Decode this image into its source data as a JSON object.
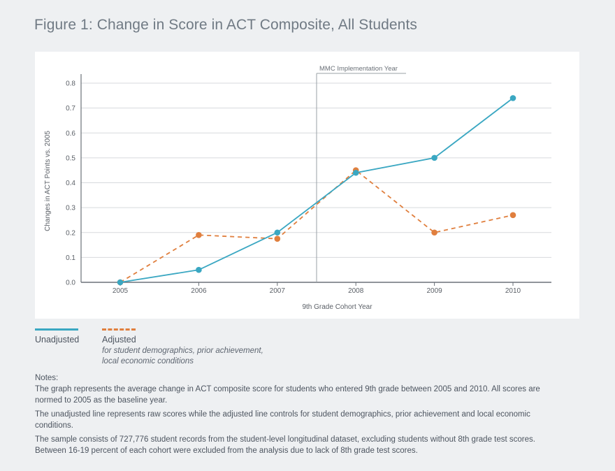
{
  "title": "Figure 1: Change in Score in ACT Composite, All Students",
  "colors": {
    "unadjusted": "#3aa7c2",
    "adjusted": "#e07f3e",
    "grid": "#d7dadd",
    "axis": "#6b7178"
  },
  "chart_data": {
    "type": "line",
    "title": "",
    "xlabel": "9th Grade Cohort Year",
    "ylabel": "Changes in ACT Points vs. 2005",
    "categories": [
      "2005",
      "2006",
      "2007",
      "2008",
      "2009",
      "2010"
    ],
    "ylim": [
      0,
      0.8
    ],
    "yticks": [
      "0.0",
      "0.1",
      "0.2",
      "0.3",
      "0.4",
      "0.5",
      "0.6",
      "0.7",
      "0.8"
    ],
    "grid": true,
    "series": [
      {
        "name": "Unadjusted",
        "style": "solid",
        "values": [
          0.0,
          0.05,
          0.2,
          0.44,
          0.5,
          0.74
        ]
      },
      {
        "name": "Adjusted",
        "style": "dashed",
        "values": [
          0.0,
          0.19,
          0.175,
          0.45,
          0.2,
          0.27
        ]
      }
    ],
    "annotation": {
      "label": "MMC Implementation Year",
      "between": [
        "2007",
        "2008"
      ]
    }
  },
  "legend": {
    "unadjusted_label": "Unadjusted",
    "adjusted_label": "Adjusted",
    "adjusted_sub_1": "for student demographics, prior achievement,",
    "adjusted_sub_2": "local economic conditions"
  },
  "notes": {
    "heading": "Notes:",
    "paragraphs": [
      "The graph represents the average change in ACT composite score for students who entered 9th grade between 2005 and 2010. All scores are normed to 2005 as the baseline year.",
      "The unadjusted line represents raw scores while the adjusted line controls for student demographics, prior achievement and local economic conditions.",
      "The sample consists of 727,776 student records from the student-level longitudinal dataset, excluding students without 8th grade test scores. Between 16-19 percent of each cohort were excluded from the analysis due to lack of 8th grade test scores."
    ]
  }
}
